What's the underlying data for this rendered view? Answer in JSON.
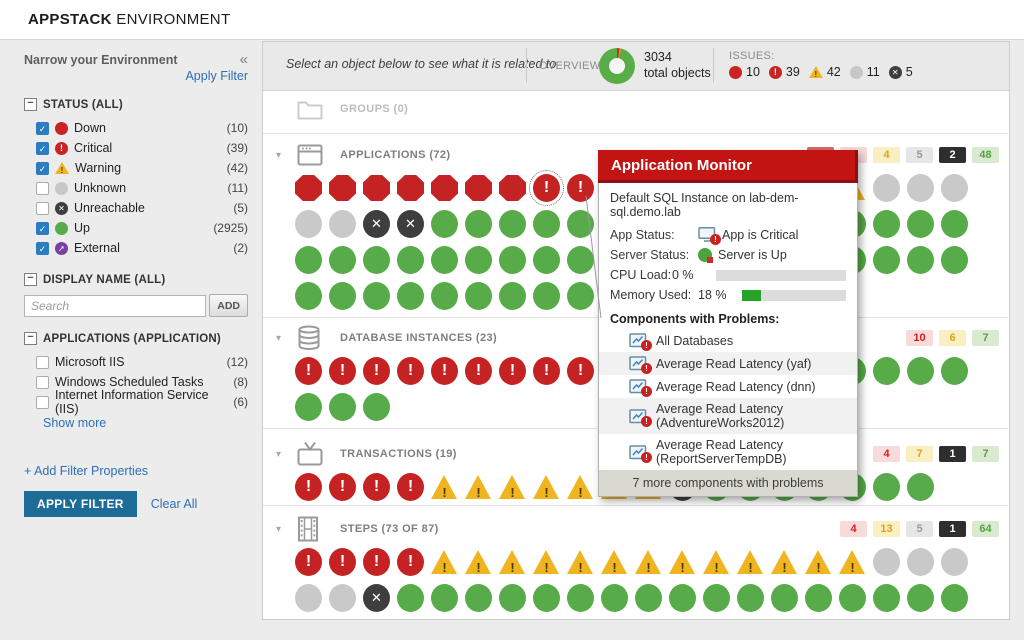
{
  "colors": {
    "down": "#c52323",
    "critical": "#c52323",
    "warning": "#efb41f",
    "unknown": "#c9c9c9",
    "unreachable": "#3e3e3e",
    "up": "#57ab49",
    "external": "#7b3fa0",
    "link": "#2d6fb7",
    "apply_button": "#1d6c97",
    "tooltip_header": "#c31414",
    "memory_fill": "#28a329"
  },
  "icons": {
    "collapse_left": "«",
    "box_minus": "−",
    "check": "✓",
    "cross": "✕",
    "external_arrow": "➚",
    "exclaim": "!",
    "dropdown_arrow": "▾"
  },
  "header": {
    "brand": "APPSTACK",
    "title": "ENVIRONMENT"
  },
  "sidebar": {
    "title": "Narrow your Environment",
    "apply_filter_link": "Apply Filter",
    "status": {
      "label": "STATUS (ALL)",
      "items": [
        {
          "checked": true,
          "icon": "down",
          "label": "Down",
          "count": "(10)"
        },
        {
          "checked": true,
          "icon": "critical",
          "label": "Critical",
          "count": "(39)"
        },
        {
          "checked": true,
          "icon": "warning",
          "label": "Warning",
          "count": "(42)"
        },
        {
          "checked": false,
          "icon": "unknown",
          "label": "Unknown",
          "count": "(11)"
        },
        {
          "checked": false,
          "icon": "unreachable",
          "label": "Unreachable",
          "count": "(5)"
        },
        {
          "checked": true,
          "icon": "up",
          "label": "Up",
          "count": "(2925)"
        },
        {
          "checked": true,
          "icon": "external",
          "label": "External",
          "count": "(2)"
        }
      ]
    },
    "display_name": {
      "label": "DISPLAY NAME (ALL)",
      "search_placeholder": "Search",
      "add_label": "ADD"
    },
    "applications_filter": {
      "label": "APPLICATIONS (APPLICATION)",
      "items": [
        {
          "checked": false,
          "label": "Microsoft IIS",
          "count": "(12)"
        },
        {
          "checked": false,
          "label": "Windows Scheduled Tasks",
          "count": "(8)"
        },
        {
          "checked": false,
          "label": "Internet Information Service (IIS)",
          "count": "(6)"
        }
      ],
      "show_more": "Show more"
    },
    "add_filter_properties": "+ Add Filter Properties",
    "apply_filter_button": "APPLY FILTER",
    "clear_all": "Clear All"
  },
  "topbar": {
    "hint": "Select an object below to see what it is related to",
    "overview_label": "OVERVIEW:",
    "total_count": "3034",
    "total_label": "total objects",
    "issues_label": "ISSUES:",
    "issues": [
      {
        "icon": "down",
        "count": "10"
      },
      {
        "icon": "critical",
        "count": "39"
      },
      {
        "icon": "warning",
        "count": "42"
      },
      {
        "icon": "unknown",
        "count": "11"
      },
      {
        "icon": "unreachable",
        "count": "5"
      }
    ]
  },
  "sections": [
    {
      "key": "groups",
      "icon": "folder",
      "label": "GROUPS (0)",
      "muted": true,
      "arrow": false,
      "badges": [],
      "rows": []
    },
    {
      "key": "applications",
      "icon": "app-window",
      "label": "APPLICATIONS (72)",
      "muted": false,
      "arrow": true,
      "badges": [
        {
          "type": "down",
          "value": "7"
        },
        {
          "type": "critical",
          "value": "6"
        },
        {
          "type": "warning",
          "value": "4"
        },
        {
          "type": "unknown",
          "value": "5"
        },
        {
          "type": "unreachable",
          "value": "2"
        },
        {
          "type": "up",
          "value": "48"
        }
      ],
      "selected": {
        "row": 0,
        "index": 7
      },
      "rows": [
        [
          {
            "type": "down",
            "count": 7
          },
          {
            "type": "critical",
            "count": 6
          },
          {
            "type": "warning",
            "count": 4
          },
          {
            "type": "unknown",
            "count": 3
          }
        ],
        [
          {
            "type": "unknown",
            "count": 2
          },
          {
            "type": "unreachable",
            "count": 2
          },
          {
            "type": "up",
            "count": 16
          }
        ],
        [
          {
            "type": "up",
            "count": 20
          }
        ],
        [
          {
            "type": "up",
            "count": 12
          }
        ]
      ]
    },
    {
      "key": "database-instances",
      "icon": "database",
      "label": "DATABASE INSTANCES (23)",
      "muted": false,
      "arrow": true,
      "badges": [
        {
          "type": "critical",
          "value": "10"
        },
        {
          "type": "warning",
          "value": "6"
        },
        {
          "type": "up",
          "value": "7"
        }
      ],
      "rows": [
        [
          {
            "type": "critical",
            "count": 10
          },
          {
            "type": "warning",
            "count": 6
          },
          {
            "type": "up",
            "count": 4
          }
        ],
        [
          {
            "type": "up",
            "count": 3
          }
        ]
      ]
    },
    {
      "key": "transactions",
      "icon": "tv",
      "label": "TRANSACTIONS (19)",
      "muted": false,
      "arrow": true,
      "badges": [
        {
          "type": "critical",
          "value": "4"
        },
        {
          "type": "warning",
          "value": "7"
        },
        {
          "type": "unreachable",
          "value": "1"
        },
        {
          "type": "up",
          "value": "7"
        }
      ],
      "rows": [
        [
          {
            "type": "critical",
            "count": 4
          },
          {
            "type": "warning",
            "count": 7
          },
          {
            "type": "unreachable",
            "count": 1
          },
          {
            "type": "up",
            "count": 7
          }
        ]
      ]
    },
    {
      "key": "steps",
      "icon": "film",
      "label": "STEPS (73 OF 87)",
      "muted": false,
      "arrow": true,
      "badges": [
        {
          "type": "critical",
          "value": "4"
        },
        {
          "type": "warning",
          "value": "13"
        },
        {
          "type": "unknown",
          "value": "5"
        },
        {
          "type": "unreachable",
          "value": "1"
        },
        {
          "type": "up",
          "value": "64"
        }
      ],
      "rows": [
        [
          {
            "type": "critical",
            "count": 4
          },
          {
            "type": "warning",
            "count": 13
          },
          {
            "type": "unknown",
            "count": 3
          }
        ],
        [
          {
            "type": "unknown",
            "count": 2
          },
          {
            "type": "unreachable",
            "count": 1
          },
          {
            "type": "up",
            "count": 17
          }
        ]
      ]
    }
  ],
  "tooltip": {
    "title": "Application Monitor",
    "subtitle": "Default SQL Instance on lab-dem-sql.demo.lab",
    "app_status_label": "App Status:",
    "app_status_value": "App is Critical",
    "server_status_label": "Server Status:",
    "server_status_value": "Server is Up",
    "cpu": {
      "label": "CPU Load:",
      "value": "0 %",
      "percent": 0
    },
    "memory": {
      "label": "Memory Used:",
      "value": "18 %",
      "percent": 18
    },
    "components_header": "Components with Problems:",
    "components": [
      "All Databases",
      "Average Read Latency (yaf)",
      "Average Read Latency (dnn)",
      "Average Read Latency (AdventureWorks2012)",
      "Average Read Latency (ReportServerTempDB)"
    ],
    "footer": "7 more components with problems"
  }
}
